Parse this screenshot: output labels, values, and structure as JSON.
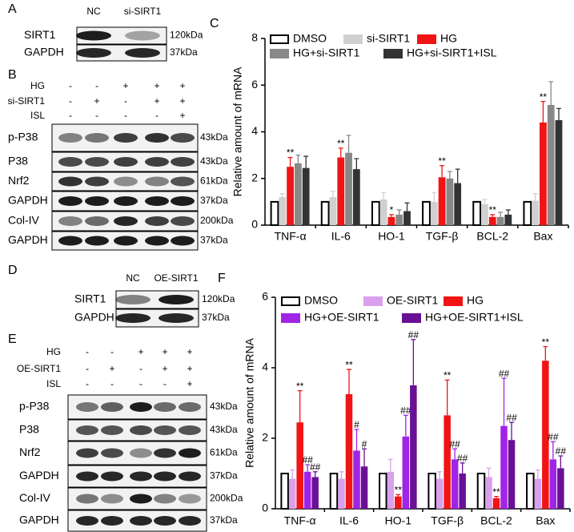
{
  "blots": [
    {
      "panel": "A",
      "lanes": [
        "NC",
        "si-SIRT1"
      ],
      "rows": [
        {
          "label": "SIRT1",
          "size": "120kDa"
        },
        {
          "label": "GAPDH",
          "size": "37kDa"
        }
      ]
    },
    {
      "panel": "B",
      "conditions": [
        {
          "label": "HG",
          "signs": [
            "-",
            "-",
            "+",
            "+",
            "+"
          ]
        },
        {
          "label": "si-SIRT1",
          "signs": [
            "-",
            "+",
            "-",
            "+",
            "+"
          ]
        },
        {
          "label": "ISL",
          "signs": [
            "-",
            "-",
            "-",
            "-",
            "+"
          ]
        }
      ],
      "rows": [
        {
          "label": "p-P38",
          "size": "43kDa"
        },
        {
          "label": "P38",
          "size": "43kDa"
        },
        {
          "label": "Nrf2",
          "size": "61kDa"
        },
        {
          "label": "GAPDH",
          "size": "37kDa"
        },
        {
          "label": "Col-IV",
          "size": "200kDa"
        },
        {
          "label": "GAPDH",
          "size": "37kDa"
        }
      ]
    },
    {
      "panel": "D",
      "lanes": [
        "NC",
        "OE-SIRT1"
      ],
      "rows": [
        {
          "label": "SIRT1",
          "size": "120kDa"
        },
        {
          "label": "GAPDH",
          "size": "37kDa"
        }
      ]
    },
    {
      "panel": "E",
      "conditions": [
        {
          "label": "HG",
          "signs": [
            "-",
            "-",
            "+",
            "+",
            "+"
          ]
        },
        {
          "label": "OE-SIRT1",
          "signs": [
            "-",
            "+",
            "-",
            "+",
            "+"
          ]
        },
        {
          "label": "ISL",
          "signs": [
            "-",
            "-",
            "-",
            "-",
            "+"
          ]
        }
      ],
      "rows": [
        {
          "label": "p-P38",
          "size": "43kDa"
        },
        {
          "label": "P38",
          "size": "43kDa"
        },
        {
          "label": "Nrf2",
          "size": "61kDa"
        },
        {
          "label": "GAPDH",
          "size": "37kDa"
        },
        {
          "label": "Col-IV",
          "size": "200kDa"
        },
        {
          "label": "GAPDH",
          "size": "37kDa"
        }
      ]
    }
  ],
  "chart_data": [
    {
      "type": "bar",
      "panel": "C",
      "ylabel": "Relative amount of mRNA",
      "categories": [
        "TNF-α",
        "IL-6",
        "HO-1",
        "TGF-β",
        "BCL-2",
        "Bax"
      ],
      "ylim": [
        0,
        8
      ],
      "yticks": [
        0,
        2,
        4,
        6,
        8
      ],
      "series": [
        {
          "name": "DMSO",
          "color": "#ffffff",
          "edgecolor": "#000000",
          "values": [
            1,
            1,
            1,
            1,
            1,
            1
          ],
          "errors": [
            0,
            0,
            0,
            0,
            0,
            0
          ]
        },
        {
          "name": "si-SIRT1",
          "color": "#d0d0d0",
          "values": [
            1.2,
            1.2,
            1.1,
            1.0,
            0.9,
            1.05
          ],
          "errors": [
            0.15,
            0.25,
            0.3,
            0.4,
            0.2,
            0.3
          ]
        },
        {
          "name": "HG",
          "color": "#f01414",
          "values": [
            2.5,
            2.9,
            0.35,
            2.05,
            0.35,
            4.4
          ],
          "errors": [
            0.4,
            0.4,
            0.1,
            0.5,
            0.1,
            0.9
          ],
          "annotations": [
            "**",
            "**",
            "*",
            "**",
            "**",
            "**"
          ]
        },
        {
          "name": "HG+si-SIRT1",
          "color": "#888888",
          "values": [
            2.65,
            3.1,
            0.45,
            2.0,
            0.35,
            5.15
          ],
          "errors": [
            0.35,
            0.75,
            0.2,
            0.3,
            0.2,
            1.0
          ]
        },
        {
          "name": "HG+si-SIRT1+ISL",
          "color": "#333333",
          "values": [
            2.45,
            2.4,
            0.6,
            1.8,
            0.45,
            4.5
          ],
          "errors": [
            0.5,
            0.45,
            0.35,
            0.6,
            0.2,
            0.5
          ]
        }
      ]
    },
    {
      "type": "bar",
      "panel": "F",
      "ylabel": "Relative amount of mRNA",
      "categories": [
        "TNF-α",
        "IL-6",
        "HO-1",
        "TGF-β",
        "BCL-2",
        "Bax"
      ],
      "ylim": [
        0,
        6
      ],
      "yticks": [
        0,
        2,
        4,
        6
      ],
      "series": [
        {
          "name": "DMSO",
          "color": "#ffffff",
          "edgecolor": "#000000",
          "values": [
            1,
            1,
            1,
            1,
            1,
            1
          ],
          "errors": [
            0,
            0,
            0,
            0,
            0,
            0
          ]
        },
        {
          "name": "OE-SIRT1",
          "color": "#d9a0ec",
          "values": [
            0.85,
            0.85,
            1.05,
            0.85,
            0.9,
            0.85
          ],
          "errors": [
            0.25,
            0.2,
            0.35,
            0.2,
            0.25,
            0.25
          ]
        },
        {
          "name": "HG",
          "color": "#f01414",
          "values": [
            2.45,
            3.25,
            0.35,
            2.65,
            0.3,
            4.2
          ],
          "errors": [
            0.9,
            0.7,
            0.05,
            1.0,
            0.05,
            0.4
          ],
          "annotations": [
            "**",
            "**",
            "**",
            "**",
            "**",
            "**"
          ]
        },
        {
          "name": "HG+OE-SIRT1",
          "color": "#a024e6",
          "values": [
            1.05,
            1.65,
            2.05,
            1.4,
            2.35,
            1.4
          ],
          "errors": [
            0.2,
            0.6,
            0.6,
            0.3,
            1.35,
            0.5
          ],
          "annotations": [
            "##",
            "#",
            "##",
            "##",
            "##",
            "##"
          ]
        },
        {
          "name": "HG+OE-SIRT1+ISL",
          "color": "#6a1096",
          "values": [
            0.9,
            1.2,
            3.5,
            1.0,
            1.95,
            1.15
          ],
          "errors": [
            0.15,
            0.5,
            1.3,
            0.3,
            0.5,
            0.35
          ],
          "annotations": [
            "##",
            "#",
            "##",
            "##",
            "##",
            "##"
          ]
        }
      ]
    }
  ]
}
